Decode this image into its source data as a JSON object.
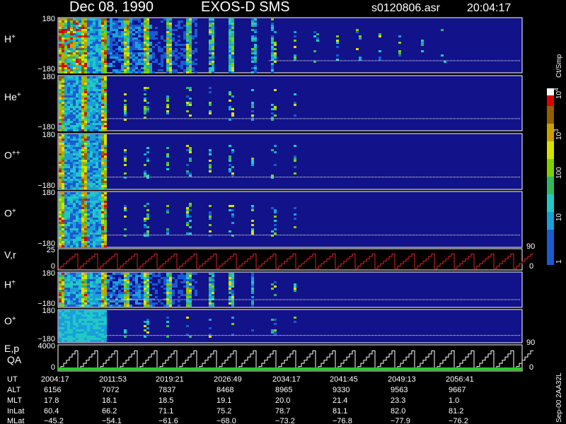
{
  "header": {
    "date": "Dec 08, 1990",
    "instrument": "EXOS-D SMS",
    "file": "s0120806.asr",
    "time": "20:04:17"
  },
  "panels": [
    {
      "ion": "H",
      "charge": "+",
      "top": "180",
      "bottom": "−180"
    },
    {
      "ion": "He",
      "charge": "+",
      "top": "180",
      "bottom": "−180"
    },
    {
      "ion": "O",
      "charge": "++",
      "top": "180",
      "bottom": "−180"
    },
    {
      "ion": "O",
      "charge": "+",
      "top": "180",
      "bottom": "−180"
    },
    {
      "ion": "V,r",
      "top": "25",
      "bottom": "0",
      "right_top": "90",
      "right_bottom": "0"
    },
    {
      "ion": "H",
      "charge": "+",
      "top": "180",
      "bottom": "−180"
    },
    {
      "ion": "O",
      "charge": "+",
      "top": "180",
      "bottom": "−180"
    },
    {
      "ion": "E,p",
      "sub": "QA",
      "top": "4000",
      "bottom": "0",
      "right_top": "90",
      "right_bottom": "0"
    }
  ],
  "colorbar": {
    "unit": "Ct/Smp",
    "ticks": [
      {
        "base": "10",
        "exp": "4"
      },
      {
        "base": "10",
        "exp": "3"
      },
      {
        "base": "100"
      },
      {
        "base": "10"
      },
      {
        "base": "1"
      }
    ]
  },
  "footer": {
    "row_labels": [
      "UT",
      "ALT",
      "MLT",
      "InLat",
      "MLat"
    ],
    "columns": [
      [
        "2004:17",
        "6156",
        "17.8",
        "60.4",
        "−45.2"
      ],
      [
        "2011:53",
        "7072",
        "18.1",
        "66.2",
        "−54.1"
      ],
      [
        "2019:21",
        "7837",
        "18.5",
        "71.1",
        "−61.6"
      ],
      [
        "2026:49",
        "8468",
        "19.1",
        "75.2",
        "−68.0"
      ],
      [
        "2034:17",
        "8965",
        "20.0",
        "78.7",
        "−73.2"
      ],
      [
        "2041:45",
        "9330",
        "21.4",
        "81.1",
        "−76.8"
      ],
      [
        "2049:13",
        "9563",
        "23.3",
        "82.0",
        "−77.9"
      ],
      [
        "2056:41",
        "9667",
        "1.0",
        "81.2",
        "−76.2"
      ]
    ]
  },
  "stamp": "Sep-00 2AA32L"
}
